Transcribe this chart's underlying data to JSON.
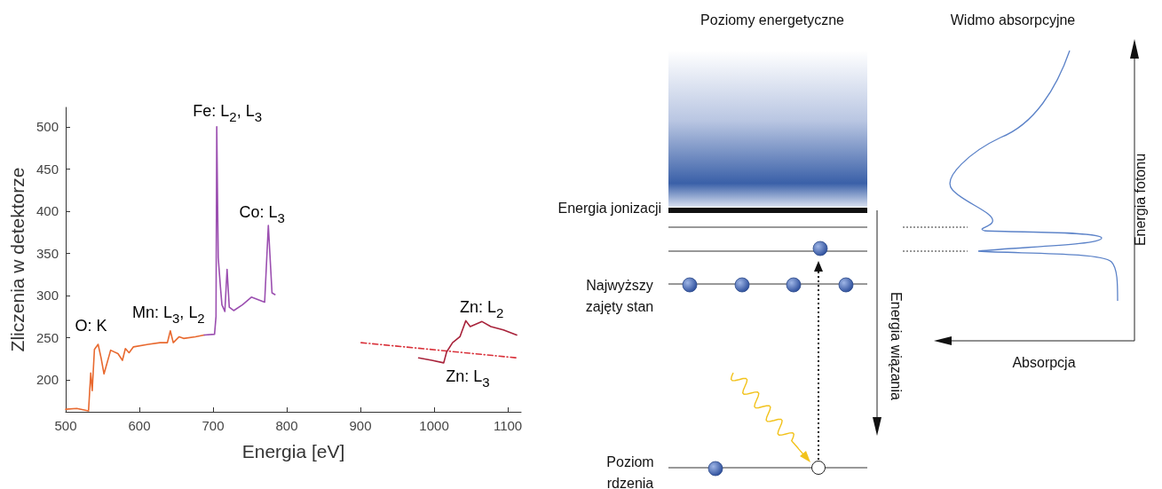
{
  "chart_data": [
    {
      "type": "line",
      "xlabel": "Energia [eV]",
      "ylabel": "Zliczenia w detektorze",
      "xlim": [
        500,
        1118
      ],
      "xticks": [
        500,
        600,
        700,
        800,
        900,
        1000,
        1100
      ],
      "ylim": [
        162,
        523
      ],
      "yticks": [
        200,
        250,
        300,
        350,
        400,
        450,
        500
      ],
      "grid": false,
      "marker": "none",
      "series": [
        {
          "color": "#e8692f",
          "line_style": "solid",
          "x": [
            500,
            515,
            531,
            534,
            536,
            539,
            544,
            548,
            552,
            561,
            571,
            577,
            581,
            586,
            592,
            612,
            628,
            638,
            642,
            646,
            654,
            660,
            676,
            688
          ],
          "values": [
            165,
            166,
            163,
            208,
            187,
            236,
            242,
            226,
            207,
            235,
            231,
            223,
            237,
            232,
            239,
            242,
            244,
            244,
            258,
            244,
            251,
            249,
            251,
            253
          ]
        },
        {
          "color": "#9b4fb0",
          "line_style": "solid",
          "x": [
            688,
            702,
            704,
            705,
            707,
            710,
            712,
            716,
            719,
            722,
            728,
            740,
            752,
            770,
            775,
            780,
            784
          ],
          "values": [
            253,
            254,
            275,
            500,
            345,
            310,
            289,
            281,
            331,
            286,
            282,
            289,
            298,
            292,
            383,
            303,
            301
          ]
        },
        {
          "color": "#d9313a",
          "line_style": "dashed",
          "x": [
            901,
            1112
          ],
          "values": [
            244,
            226
          ]
        },
        {
          "color": "#a8223a",
          "line_style": "solid",
          "x": [
            979,
            997,
            1013,
            1017,
            1025,
            1035,
            1043,
            1049,
            1065,
            1077,
            1094,
            1112
          ],
          "values": [
            226,
            223,
            220,
            233,
            244,
            251,
            270,
            263,
            269,
            263,
            259,
            253
          ]
        }
      ],
      "annotations": [
        {
          "text": "O: K",
          "x": 544,
          "y": 242
        },
        {
          "text": "Mn: L$_{3}$, L$_{2}$",
          "x": 642,
          "y": 258
        },
        {
          "text": "Fe: L$_{2}$, L$_{3}$",
          "x": 705,
          "y": 500
        },
        {
          "text": "Co: L$_{3}$",
          "x": 775,
          "y": 383
        },
        {
          "text": "Zn: L$_{2}$",
          "x": 1043,
          "y": 270
        },
        {
          "text": "Zn: L$_{3}$",
          "x": 1013,
          "y": 220
        }
      ]
    },
    {
      "type": "other",
      "annotations": [
        "Poziomy energetyczne",
        "Widmo absorpcyjne",
        "Energia jonizacji",
        "Najwyższy\nzajęty stan",
        "Poziom\nrdzenia",
        "Energia wiązania",
        "Energia fotonu",
        "Absorpcja"
      ]
    }
  ]
}
